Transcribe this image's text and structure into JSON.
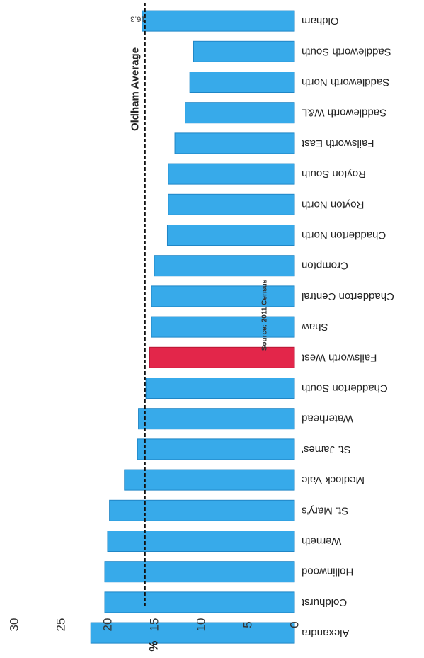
{
  "chart_data": {
    "type": "bar",
    "orientation": "vertical-bars, image rotated 90 degrees clockwise",
    "source": "Source: 2011 Census",
    "ylabel": "%",
    "ylim": [
      0,
      30
    ],
    "yticks": [
      "0",
      "5",
      "10",
      "15",
      "20",
      "25",
      "30"
    ],
    "categories": [
      "Alexandra",
      "Coldhurst",
      "Hollinwood",
      "Werneth",
      "St. Mary's",
      "Medlock Vale",
      "St. James'",
      "Waterhead",
      "Chadderton South",
      "Failsworth West",
      "Shaw",
      "Chadderton Central",
      "Crompton",
      "Chadderton North",
      "Royton North",
      "Royton South",
      "Failsworth East",
      "Saddleworth W&L",
      "Saddleworth North",
      "Saddleworth South",
      "Oldham"
    ],
    "values": [
      21.8,
      20.3,
      20.3,
      20.0,
      19.8,
      18.2,
      16.8,
      16.7,
      15.9,
      15.5,
      15.3,
      15.3,
      15.0,
      13.6,
      13.5,
      13.5,
      12.8,
      11.7,
      11.2,
      10.8,
      16.3
    ],
    "highlight_index": 9,
    "value_label": "16.3",
    "reference_line": {
      "label": "Oldham Average",
      "value": 16.0
    },
    "grid": false,
    "colors": {
      "bar": "#37aaea",
      "bar_edge": "#1f86c6",
      "highlight": "#e3264a",
      "highlight_edge": "#b81535",
      "reference": "#111111"
    }
  }
}
